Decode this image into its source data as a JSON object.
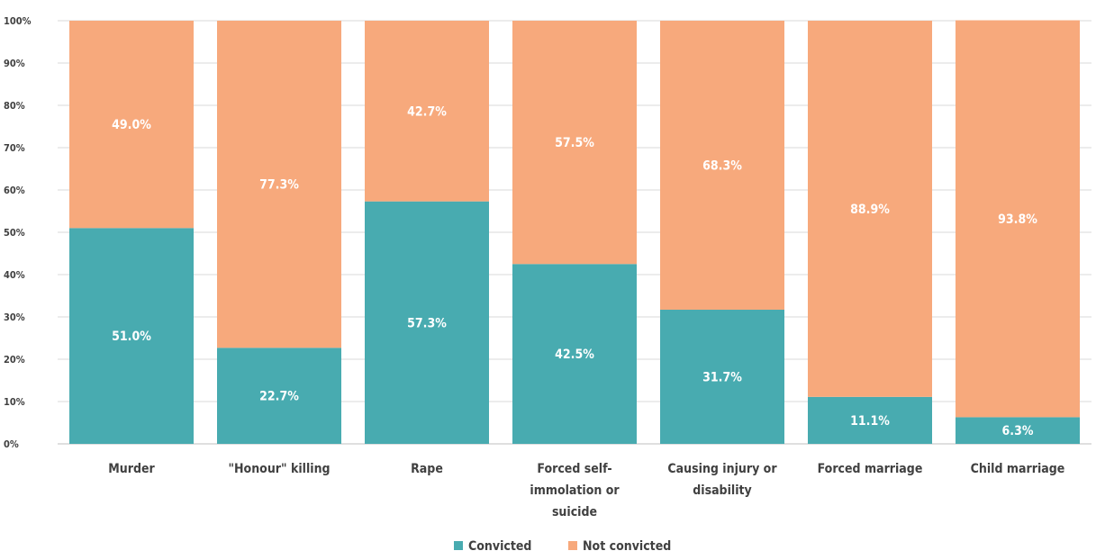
{
  "chart_data": {
    "type": "bar",
    "stacked": true,
    "categories": [
      [
        "Murder"
      ],
      [
        "\"Honour\" killing"
      ],
      [
        "Rape"
      ],
      [
        "Forced self-",
        "immolation or",
        "suicide"
      ],
      [
        "Causing injury or",
        "disability"
      ],
      [
        "Forced marriage"
      ],
      [
        "Child marriage"
      ]
    ],
    "series": [
      {
        "name": "Convicted",
        "color": "#48abb0",
        "values": [
          51.0,
          22.7,
          57.3,
          42.5,
          31.7,
          11.1,
          6.3
        ],
        "labels": [
          "51.0%",
          "22.7%",
          "57.3%",
          "42.5%",
          "31.7%",
          "11.1%",
          "6.3%"
        ]
      },
      {
        "name": "Not convicted",
        "color": "#f7a97c",
        "values": [
          49.0,
          77.3,
          42.7,
          57.5,
          68.3,
          88.9,
          93.8
        ],
        "labels": [
          "49.0%",
          "77.3%",
          "42.7%",
          "57.5%",
          "68.3%",
          "88.9%",
          "93.8%"
        ]
      }
    ],
    "y_ticks": [
      "0%",
      "10%",
      "20%",
      "30%",
      "40%",
      "50%",
      "60%",
      "70%",
      "80%",
      "90%",
      "100%"
    ],
    "ylim": [
      0,
      100
    ],
    "grid": true,
    "legend_position": "bottom-center",
    "title": "",
    "xlabel": "",
    "ylabel": ""
  }
}
